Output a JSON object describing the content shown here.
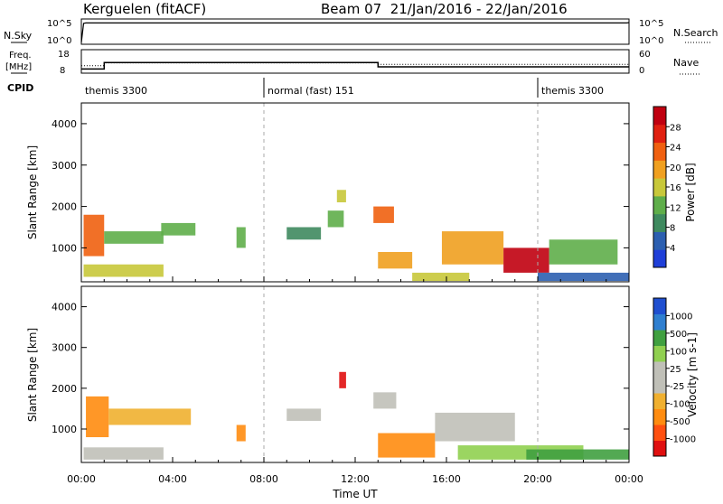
{
  "header": {
    "title": "Kerguelen (fitACF)",
    "beam_date": "Beam 07  21/Jan/2016 - 22/Jan/2016"
  },
  "colors": {
    "power_scale": [
      "#1f3fd8",
      "#2c5fb0",
      "#3f8a5f",
      "#5fae4a",
      "#c8c83a",
      "#f0a020",
      "#f06010",
      "#e02010",
      "#c00010"
    ],
    "velocity_scale": [
      "#e01010",
      "#ff5010",
      "#ff8c10",
      "#f0b030",
      "#c0c0b8",
      "#c0c0b8",
      "#90d050",
      "#40a040",
      "#2f7fd0",
      "#1f4fd0"
    ]
  },
  "chart_data": [
    {
      "id": "nsky-nsearch",
      "type": "line",
      "ylabel_left": "N.Sky",
      "ylabel_right": "N.Search",
      "left_ticks": [
        "10^5",
        "10^0"
      ],
      "right_ticks": [
        "10^5",
        "10^0"
      ],
      "series": [
        {
          "name": "N.Sky",
          "x_hours": [
            0,
            0.1,
            0.2,
            23.9,
            24
          ],
          "y_log10": [
            0,
            4.8,
            4.9,
            4.9,
            5.0
          ]
        }
      ]
    },
    {
      "id": "freq-nave",
      "type": "line",
      "ylabel_left": "Freq. [MHz]",
      "ylabel_right": "Nave",
      "left_ticks": [
        "18",
        "8"
      ],
      "right_ticks": [
        "60",
        "0"
      ],
      "series": [
        {
          "name": "Freq",
          "x_hours": [
            0,
            1.0,
            1.0,
            13.0,
            13.0,
            24
          ],
          "y": [
            9.5,
            9.5,
            12.5,
            12.5,
            10.5,
            10.5
          ]
        },
        {
          "name": "Nave",
          "x_hours": [
            0,
            1.0,
            1.0,
            13.0,
            13.0,
            24
          ],
          "y": [
            18,
            18,
            26,
            26,
            22,
            22
          ]
        }
      ]
    },
    {
      "id": "cpid",
      "type": "table",
      "label": "CPID",
      "segments": [
        {
          "label": "themis 3300",
          "start": 0,
          "end": 8
        },
        {
          "label": "normal (fast) 151",
          "start": 8,
          "end": 20
        },
        {
          "label": "themis 3300",
          "start": 20,
          "end": 24
        }
      ]
    },
    {
      "id": "power",
      "type": "heatmap",
      "ylabel": "Slant Range [km]",
      "ylim": [
        180,
        4500
      ],
      "yticks": [
        1000,
        2000,
        3000,
        4000
      ],
      "colorbar_label": "Power [dB]",
      "colorbar_ticks": [
        "4",
        "8",
        "12",
        "16",
        "20",
        "24",
        "28"
      ],
      "patches": [
        {
          "x0": 0.1,
          "x1": 3.6,
          "y0": 300,
          "y1": 600,
          "level": 4
        },
        {
          "x0": 0.1,
          "x1": 1.0,
          "y0": 800,
          "y1": 1800,
          "level": 6
        },
        {
          "x0": 1.0,
          "x1": 3.6,
          "y0": 1100,
          "y1": 1400,
          "level": 3
        },
        {
          "x0": 3.5,
          "x1": 5.0,
          "y0": 1300,
          "y1": 1600,
          "level": 3
        },
        {
          "x0": 6.8,
          "x1": 7.2,
          "y0": 1000,
          "y1": 1500,
          "level": 3
        },
        {
          "x0": 9.0,
          "x1": 10.5,
          "y0": 1200,
          "y1": 1500,
          "level": 2
        },
        {
          "x0": 10.8,
          "x1": 11.5,
          "y0": 1500,
          "y1": 1900,
          "level": 3
        },
        {
          "x0": 11.2,
          "x1": 11.6,
          "y0": 2100,
          "y1": 2400,
          "level": 4
        },
        {
          "x0": 12.8,
          "x1": 13.7,
          "y0": 1600,
          "y1": 2000,
          "level": 6
        },
        {
          "x0": 13.0,
          "x1": 14.5,
          "y0": 500,
          "y1": 900,
          "level": 5
        },
        {
          "x0": 14.5,
          "x1": 17.0,
          "y0": 200,
          "y1": 400,
          "level": 4
        },
        {
          "x0": 15.8,
          "x1": 18.5,
          "y0": 600,
          "y1": 1400,
          "level": 5
        },
        {
          "x0": 18.5,
          "x1": 20.5,
          "y0": 400,
          "y1": 1000,
          "level": 8
        },
        {
          "x0": 20.5,
          "x1": 23.5,
          "y0": 600,
          "y1": 1200,
          "level": 3
        },
        {
          "x0": 20.0,
          "x1": 24.0,
          "y0": 200,
          "y1": 400,
          "level": 1
        }
      ]
    },
    {
      "id": "velocity",
      "type": "heatmap",
      "ylabel": "Slant Range [km]",
      "xlabel": "Time UT",
      "ylim": [
        180,
        4500
      ],
      "yticks": [
        1000,
        2000,
        3000,
        4000
      ],
      "xticks": [
        "00:00",
        "04:00",
        "08:00",
        "12:00",
        "16:00",
        "20:00",
        "00:00"
      ],
      "colorbar_label": "Velocity [m s-1]",
      "colorbar_ticks": [
        "-1000",
        "-500",
        "-100",
        "-25",
        "25",
        "100",
        "500",
        "1000"
      ],
      "patches": [
        {
          "x0": 0.1,
          "x1": 3.6,
          "y0": 250,
          "y1": 550,
          "level": 4
        },
        {
          "x0": 0.2,
          "x1": 1.2,
          "y0": 800,
          "y1": 1800,
          "level": 2
        },
        {
          "x0": 1.2,
          "x1": 4.8,
          "y0": 1100,
          "y1": 1500,
          "level": 3
        },
        {
          "x0": 6.8,
          "x1": 7.2,
          "y0": 700,
          "y1": 1100,
          "level": 2
        },
        {
          "x0": 9.0,
          "x1": 10.5,
          "y0": 1200,
          "y1": 1500,
          "level": 5
        },
        {
          "x0": 11.3,
          "x1": 11.6,
          "y0": 2000,
          "y1": 2400,
          "level": 0
        },
        {
          "x0": 12.8,
          "x1": 13.8,
          "y0": 1500,
          "y1": 1900,
          "level": 5
        },
        {
          "x0": 13.0,
          "x1": 15.5,
          "y0": 300,
          "y1": 900,
          "level": 2
        },
        {
          "x0": 15.5,
          "x1": 19.0,
          "y0": 700,
          "y1": 1400,
          "level": 5
        },
        {
          "x0": 16.5,
          "x1": 22.0,
          "y0": 250,
          "y1": 600,
          "level": 6
        },
        {
          "x0": 19.5,
          "x1": 24.0,
          "y0": 250,
          "y1": 500,
          "level": 7
        }
      ]
    }
  ]
}
